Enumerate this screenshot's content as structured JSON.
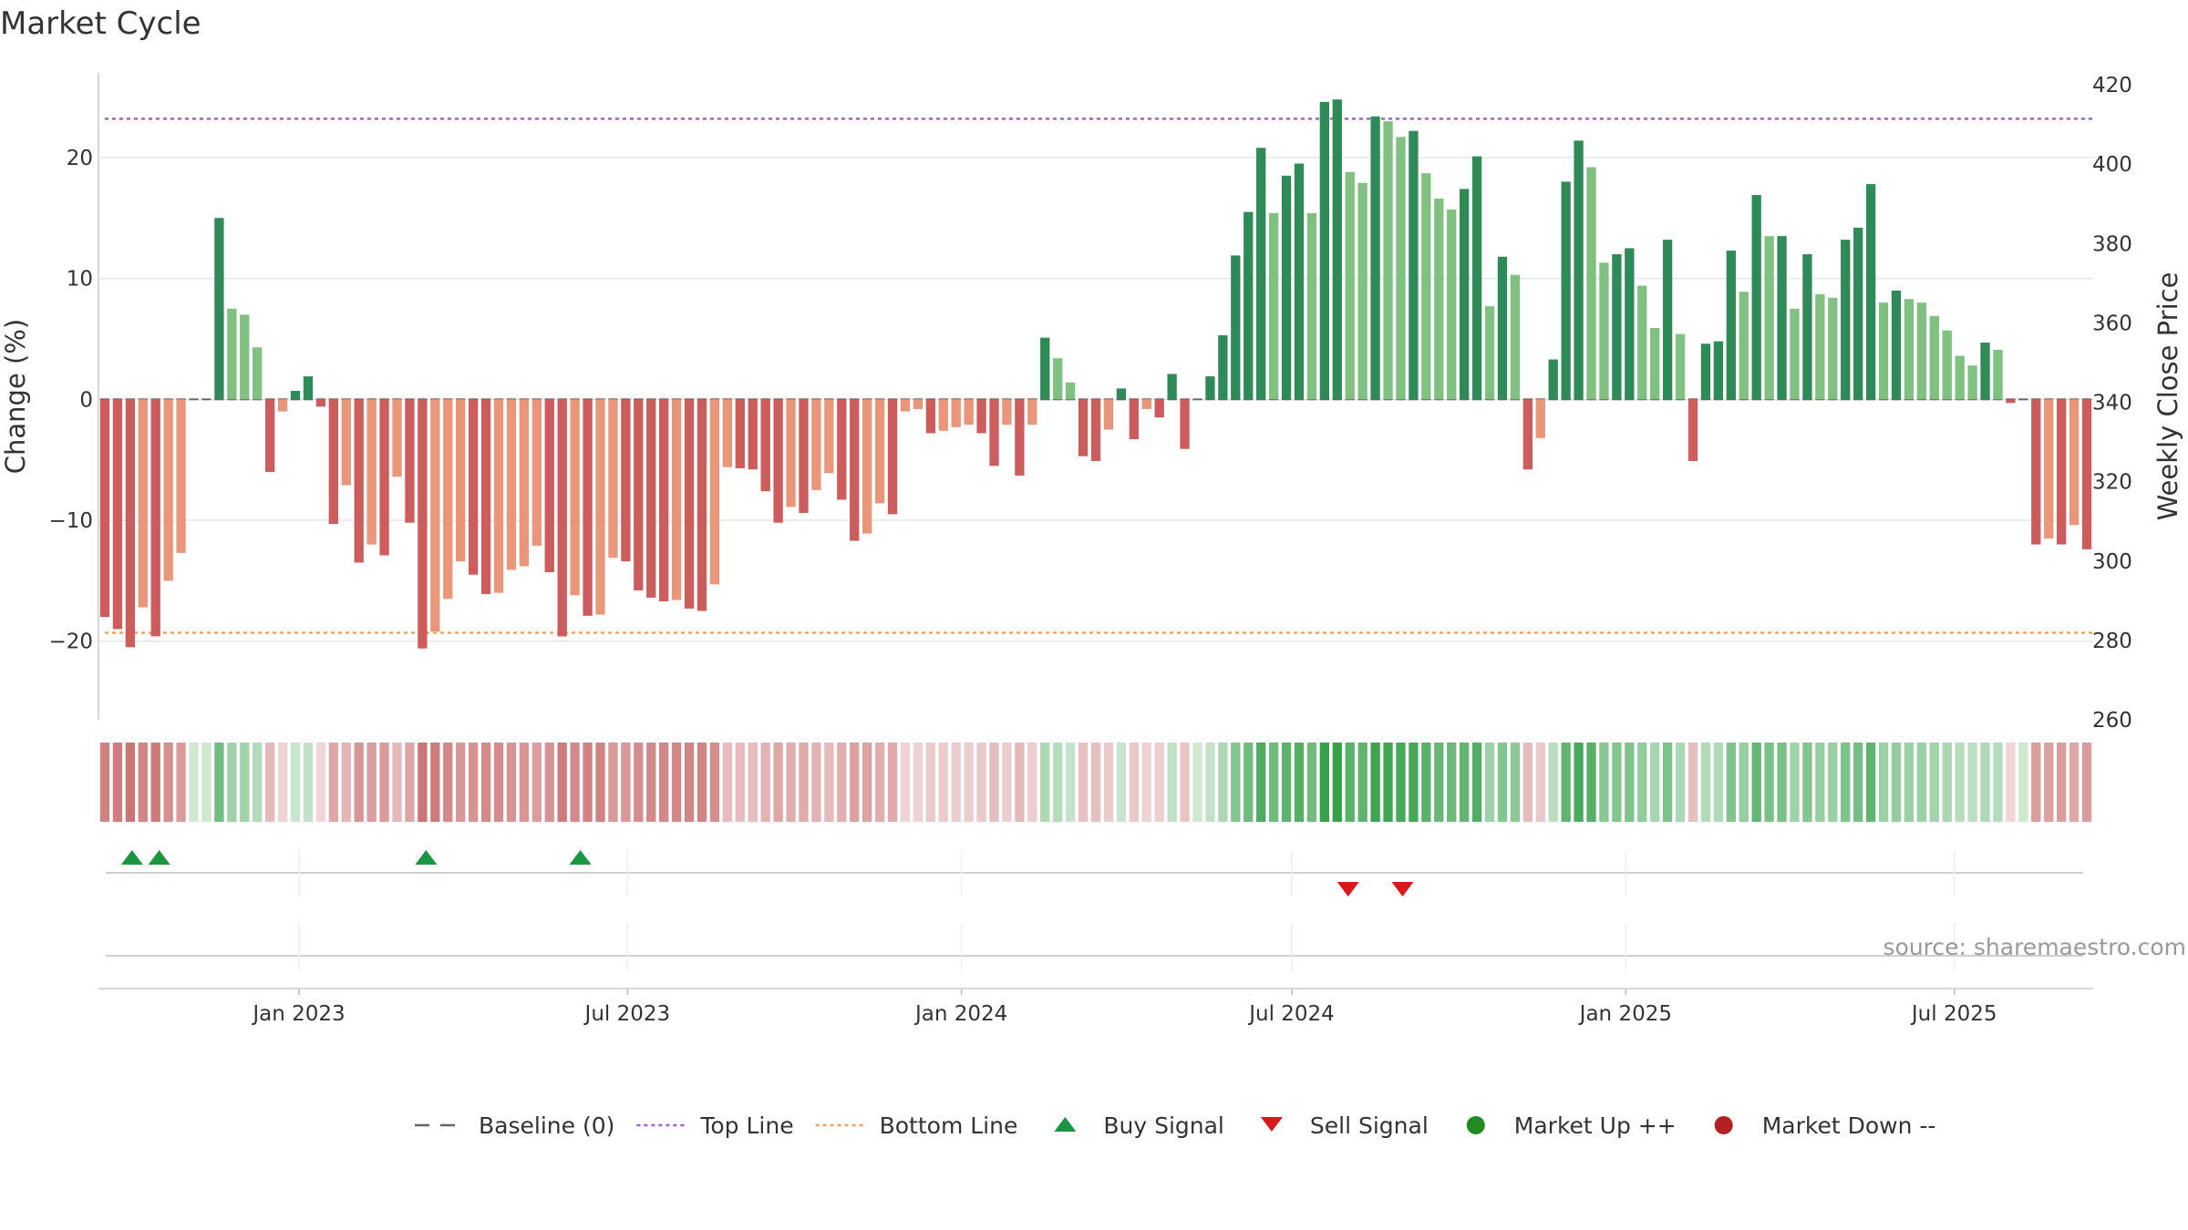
{
  "title": "Market Cycle",
  "source": "source: sharemaestro.com",
  "colors": {
    "up_strong": "#2e8b57",
    "up_light": "#80c080",
    "down_strong": "#cd5c5c",
    "down_light": "#e9967a",
    "top_line": "#9966cc",
    "bottom_line": "#f4a460",
    "baseline": "#666666",
    "buy": "#1a9641",
    "sell": "#d7191c",
    "market_up": "#228b22",
    "market_down": "#b22222"
  },
  "legend": [
    {
      "label": "Baseline (0)",
      "kind": "baseline"
    },
    {
      "label": "Top Line",
      "kind": "top"
    },
    {
      "label": "Bottom Line",
      "kind": "bottom"
    },
    {
      "label": "Buy Signal",
      "kind": "buy"
    },
    {
      "label": "Sell Signal",
      "kind": "sell"
    },
    {
      "label": "Market Up ++",
      "kind": "mup"
    },
    {
      "label": "Market Down --",
      "kind": "mdown"
    }
  ],
  "chart_data": {
    "type": "bar",
    "title": "Market Cycle",
    "ylabel": "Change (%)",
    "y2label": "Weekly Close Price",
    "ylim": [
      -26.5,
      27
    ],
    "yticks": [
      -20,
      -10,
      0,
      10,
      20
    ],
    "ytick_labels": [
      "−20",
      "−10",
      "0",
      "10",
      "20"
    ],
    "y2lim": [
      260,
      423
    ],
    "y2ticks": [
      260,
      280,
      300,
      320,
      340,
      360,
      380,
      400,
      420
    ],
    "top_line": 23.2,
    "bottom_line": -19.3,
    "x_start": "2022-09-16",
    "x_ticks": [
      {
        "date": "2023-01-01",
        "label": "Jan 2023"
      },
      {
        "date": "2023-07-01",
        "label": "Jul 2023"
      },
      {
        "date": "2024-01-01",
        "label": "Jan 2024"
      },
      {
        "date": "2024-07-01",
        "label": "Jul 2024"
      },
      {
        "date": "2025-01-01",
        "label": "Jan 2025"
      },
      {
        "date": "2025-07-01",
        "label": "Jul 2025"
      }
    ],
    "change": [
      -18,
      -19,
      -20.5,
      -17.2,
      -19.6,
      -15,
      -12.7,
      0,
      0,
      15,
      7.5,
      7,
      4.3,
      -6,
      -1,
      0.7,
      1.9,
      -0.6,
      -10.3,
      -7.1,
      -13.5,
      -12,
      -12.9,
      -6.4,
      -10.2,
      -20.6,
      -19.2,
      -16.5,
      -13.4,
      -14.5,
      -16.1,
      -16,
      -14.1,
      -13.8,
      -12.1,
      -14.3,
      -19.6,
      -16.2,
      -17.9,
      -17.8,
      -13.1,
      -13.4,
      -15.8,
      -16.4,
      -16.7,
      -16.6,
      -17.3,
      -17.5,
      -15.3,
      -5.6,
      -5.7,
      -5.8,
      -7.6,
      -10.2,
      -8.9,
      -9.4,
      -7.5,
      -6.1,
      -8.3,
      -11.7,
      -11.1,
      -8.6,
      -9.5,
      -1,
      -0.8,
      -2.8,
      -2.6,
      -2.3,
      -2.1,
      -2.8,
      -5.5,
      -2.1,
      -6.3,
      -2.1,
      5.1,
      3.4,
      1.4,
      -4.7,
      -5.1,
      -2.5,
      0.9,
      -3.3,
      -0.8,
      -1.5,
      2.1,
      -4.1,
      0,
      1.9,
      5.3,
      11.9,
      15.5,
      20.8,
      15.4,
      18.5,
      19.5,
      15.4,
      24.6,
      24.8,
      18.8,
      17.9,
      23.4,
      23,
      21.7,
      22.2,
      18.7,
      16.6,
      15.7,
      17.4,
      20.1,
      7.7,
      11.8,
      10.3,
      -5.8,
      -3.2,
      3.3,
      18,
      21.4,
      19.2,
      11.3,
      12,
      12.5,
      9.4,
      5.9,
      13.2,
      5.4,
      -5.1,
      4.6,
      4.8,
      12.3,
      8.9,
      16.9,
      13.5,
      13.5,
      7.5,
      12,
      8.7,
      8.4,
      13.2,
      14.2,
      17.8,
      8,
      9,
      8.3,
      8,
      6.9,
      5.7,
      3.6,
      2.8,
      4.7,
      4.1,
      -0.3,
      0,
      -12,
      -11.5,
      -12,
      -10.4,
      -12.4
    ],
    "buy_signal_dates": [
      "2022-10-01",
      "2022-10-16",
      "2023-03-12",
      "2023-06-05"
    ],
    "sell_signal_dates": [
      "2024-08-01",
      "2024-08-31"
    ]
  }
}
